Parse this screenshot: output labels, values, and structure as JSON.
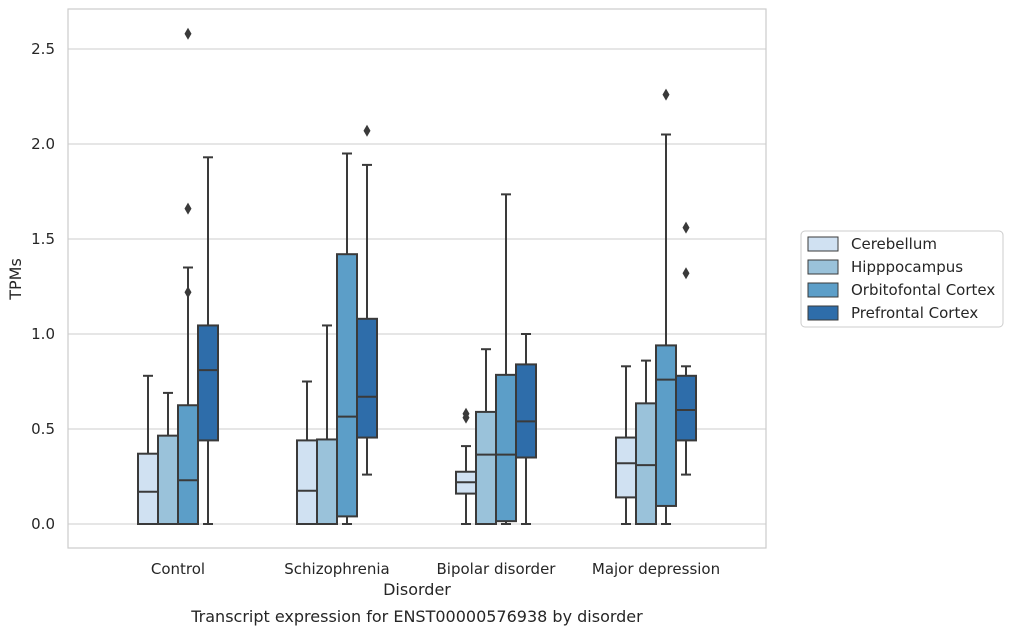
{
  "chart_data": {
    "type": "box",
    "title": "",
    "caption": "Transcript expression for ENST00000576938 by disorder",
    "xlabel": "Disorder",
    "ylabel": "TPMs",
    "ylim": [
      -0.12,
      2.72
    ],
    "yticks": [
      "0.0",
      "0.5",
      "1.0",
      "1.5",
      "2.0",
      "2.5"
    ],
    "ytick_values": [
      0.0,
      0.5,
      1.0,
      1.5,
      2.0,
      2.5
    ],
    "grid": "horizontal",
    "legend_position": "right",
    "categories": [
      "Control",
      "Schizophrenia",
      "Bipolar disorder",
      "Major depression"
    ],
    "series": [
      {
        "name": "Cerebellum",
        "color": "#d0e1f2",
        "boxes": [
          {
            "whisker_low": 0.0,
            "q1": 0.0,
            "median": 0.17,
            "q3": 0.37,
            "whisker_high": 0.78,
            "outliers": []
          },
          {
            "whisker_low": 0.0,
            "q1": 0.0,
            "median": 0.175,
            "q3": 0.44,
            "whisker_high": 0.75,
            "outliers": []
          },
          {
            "whisker_low": 0.0,
            "q1": 0.16,
            "median": 0.22,
            "q3": 0.275,
            "whisker_high": 0.41,
            "outliers": [
              0.56,
              0.58
            ]
          },
          {
            "whisker_low": 0.0,
            "q1": 0.14,
            "median": 0.32,
            "q3": 0.455,
            "whisker_high": 0.83,
            "outliers": []
          }
        ]
      },
      {
        "name": "Hipppocampus",
        "color": "#9ac2da",
        "boxes": [
          {
            "whisker_low": 0.0,
            "q1": 0.0,
            "median": 0.0,
            "q3": 0.465,
            "whisker_high": 0.69,
            "outliers": []
          },
          {
            "whisker_low": 0.0,
            "q1": 0.0,
            "median": 0.0,
            "q3": 0.445,
            "whisker_high": 1.045,
            "outliers": []
          },
          {
            "whisker_low": 0.0,
            "q1": 0.0,
            "median": 0.365,
            "q3": 0.59,
            "whisker_high": 0.92,
            "outliers": []
          },
          {
            "whisker_low": 0.0,
            "q1": 0.0,
            "median": 0.31,
            "q3": 0.635,
            "whisker_high": 0.86,
            "outliers": []
          }
        ]
      },
      {
        "name": "Orbitofontal Cortex",
        "color": "#5c9ec8",
        "boxes": [
          {
            "whisker_low": 0.0,
            "q1": 0.0,
            "median": 0.23,
            "q3": 0.625,
            "whisker_high": 1.35,
            "outliers": [
              1.22,
              1.66,
              2.58
            ]
          },
          {
            "whisker_low": 0.0,
            "q1": 0.04,
            "median": 0.565,
            "q3": 1.42,
            "whisker_high": 1.95,
            "outliers": []
          },
          {
            "whisker_low": 0.0,
            "q1": 0.015,
            "median": 0.365,
            "q3": 0.785,
            "whisker_high": 1.735,
            "outliers": []
          },
          {
            "whisker_low": 0.0,
            "q1": 0.095,
            "median": 0.76,
            "q3": 0.94,
            "whisker_high": 2.05,
            "outliers": [
              2.26
            ]
          }
        ]
      },
      {
        "name": "Prefrontal Cortex",
        "color": "#2e6daa",
        "boxes": [
          {
            "whisker_low": 0.0,
            "q1": 0.44,
            "median": 0.81,
            "q3": 1.045,
            "whisker_high": 1.93,
            "outliers": []
          },
          {
            "whisker_low": 0.26,
            "q1": 0.455,
            "median": 0.67,
            "q3": 1.08,
            "whisker_high": 1.89,
            "outliers": [
              2.07
            ]
          },
          {
            "whisker_low": 0.0,
            "q1": 0.35,
            "median": 0.54,
            "q3": 0.84,
            "whisker_high": 1.0,
            "outliers": []
          },
          {
            "whisker_low": 0.26,
            "q1": 0.44,
            "median": 0.6,
            "q3": 0.78,
            "whisker_high": 0.83,
            "outliers": [
              1.32,
              1.56
            ]
          }
        ]
      }
    ]
  }
}
